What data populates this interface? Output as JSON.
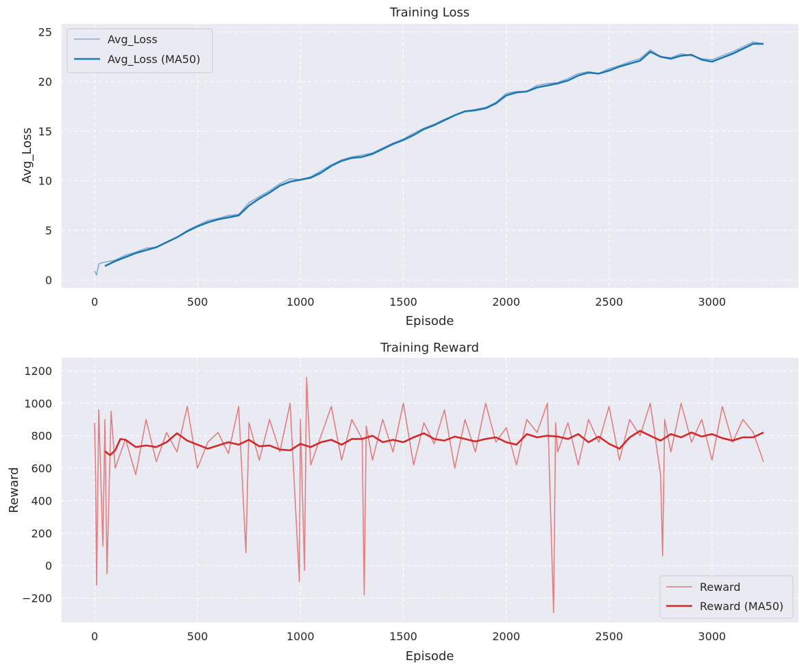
{
  "chart_data": [
    {
      "type": "line",
      "title": "Training Loss",
      "xlabel": "Episode",
      "ylabel": "Avg_Loss",
      "xlim": [
        -160,
        3420
      ],
      "ylim": [
        -0.8,
        25.8
      ],
      "xticks": [
        0,
        500,
        1000,
        1500,
        2000,
        2500,
        3000
      ],
      "yticks": [
        0,
        5,
        10,
        15,
        20,
        25
      ],
      "grid": true,
      "legend_position": "top-left",
      "series": [
        {
          "name": "Avg_Loss",
          "color": "#7fadd3",
          "x": [
            0,
            10,
            20,
            30,
            50,
            100,
            150,
            200,
            250,
            300,
            350,
            400,
            450,
            500,
            550,
            600,
            650,
            700,
            750,
            800,
            850,
            900,
            950,
            1000,
            1050,
            1100,
            1150,
            1200,
            1250,
            1300,
            1350,
            1400,
            1450,
            1500,
            1550,
            1600,
            1650,
            1700,
            1750,
            1800,
            1850,
            1900,
            1950,
            2000,
            2050,
            2100,
            2150,
            2200,
            2250,
            2300,
            2350,
            2400,
            2450,
            2500,
            2550,
            2600,
            2650,
            2700,
            2750,
            2800,
            2850,
            2900,
            2950,
            3000,
            3050,
            3100,
            3150,
            3200,
            3250
          ],
          "values": [
            0.9,
            0.5,
            1.6,
            1.7,
            1.8,
            2.0,
            2.5,
            2.8,
            3.2,
            3.3,
            3.8,
            4.3,
            5.0,
            5.5,
            6.0,
            6.2,
            6.5,
            6.6,
            7.8,
            8.4,
            9.0,
            9.7,
            10.2,
            10.1,
            10.4,
            11.0,
            11.6,
            12.1,
            12.4,
            12.6,
            12.8,
            13.3,
            13.8,
            14.2,
            14.8,
            15.3,
            15.7,
            16.2,
            16.6,
            17.0,
            17.2,
            17.4,
            17.9,
            18.8,
            19.0,
            19.0,
            19.6,
            19.8,
            19.9,
            20.3,
            20.8,
            21.0,
            20.8,
            21.3,
            21.6,
            22.0,
            22.3,
            23.2,
            22.5,
            22.4,
            22.8,
            22.6,
            22.3,
            22.2,
            22.6,
            23.0,
            23.5,
            24.0,
            23.8
          ]
        },
        {
          "name": "Avg_Loss (MA50)",
          "color": "#1f77b4",
          "x": [
            50,
            100,
            150,
            200,
            250,
            300,
            350,
            400,
            450,
            500,
            550,
            600,
            650,
            700,
            750,
            800,
            850,
            900,
            950,
            1000,
            1050,
            1100,
            1150,
            1200,
            1250,
            1300,
            1350,
            1400,
            1450,
            1500,
            1550,
            1600,
            1650,
            1700,
            1750,
            1800,
            1850,
            1900,
            1950,
            2000,
            2050,
            2100,
            2150,
            2200,
            2250,
            2300,
            2350,
            2400,
            2450,
            2500,
            2550,
            2600,
            2650,
            2700,
            2750,
            2800,
            2850,
            2900,
            2950,
            3000,
            3050,
            3100,
            3150,
            3200,
            3250
          ],
          "values": [
            1.4,
            1.9,
            2.3,
            2.7,
            3.0,
            3.3,
            3.8,
            4.3,
            4.9,
            5.4,
            5.8,
            6.1,
            6.3,
            6.5,
            7.5,
            8.2,
            8.8,
            9.5,
            9.9,
            10.1,
            10.3,
            10.8,
            11.5,
            12.0,
            12.3,
            12.4,
            12.7,
            13.2,
            13.7,
            14.1,
            14.6,
            15.2,
            15.6,
            16.1,
            16.6,
            17.0,
            17.1,
            17.3,
            17.8,
            18.6,
            18.9,
            19.0,
            19.4,
            19.6,
            19.8,
            20.1,
            20.6,
            20.9,
            20.8,
            21.1,
            21.5,
            21.8,
            22.1,
            23.0,
            22.5,
            22.3,
            22.6,
            22.7,
            22.2,
            22.0,
            22.4,
            22.8,
            23.3,
            23.8,
            23.8
          ]
        }
      ]
    },
    {
      "type": "line",
      "title": "Training Reward",
      "xlabel": "Episode",
      "ylabel": "Reward",
      "xlim": [
        -160,
        3420
      ],
      "ylim": [
        -350,
        1280
      ],
      "xticks": [
        0,
        500,
        1000,
        1500,
        2000,
        2500,
        3000
      ],
      "yticks": [
        -200,
        0,
        200,
        400,
        600,
        800,
        1000,
        1200
      ],
      "ytick_labels": [
        "−200",
        "0",
        "200",
        "400",
        "600",
        "800",
        "1000",
        "1200"
      ],
      "grid": true,
      "legend_position": "bottom-right",
      "series": [
        {
          "name": "Reward",
          "color": "#e07e80",
          "x": [
            0,
            5,
            10,
            20,
            40,
            50,
            60,
            80,
            100,
            150,
            200,
            250,
            300,
            350,
            400,
            450,
            500,
            550,
            600,
            650,
            700,
            735,
            750,
            800,
            850,
            900,
            950,
            995,
            1000,
            1020,
            1030,
            1050,
            1100,
            1150,
            1200,
            1250,
            1300,
            1310,
            1320,
            1350,
            1400,
            1450,
            1500,
            1550,
            1600,
            1650,
            1700,
            1750,
            1800,
            1850,
            1900,
            1950,
            2000,
            2050,
            2100,
            2150,
            2200,
            2230,
            2240,
            2250,
            2300,
            2350,
            2400,
            2450,
            2500,
            2550,
            2600,
            2650,
            2700,
            2750,
            2760,
            2770,
            2800,
            2850,
            2900,
            2950,
            3000,
            3050,
            3100,
            3150,
            3200,
            3250
          ],
          "values": [
            880,
            540,
            -120,
            960,
            120,
            900,
            -50,
            950,
            600,
            780,
            560,
            900,
            640,
            820,
            700,
            980,
            600,
            760,
            820,
            690,
            980,
            80,
            880,
            650,
            900,
            700,
            1000,
            -100,
            900,
            -30,
            1160,
            620,
            800,
            980,
            650,
            900,
            780,
            -180,
            860,
            650,
            900,
            700,
            1000,
            620,
            880,
            750,
            960,
            600,
            900,
            700,
            1000,
            760,
            850,
            620,
            900,
            820,
            1000,
            -290,
            880,
            700,
            880,
            620,
            900,
            760,
            980,
            650,
            900,
            800,
            1000,
            560,
            60,
            900,
            700,
            1000,
            760,
            900,
            650,
            980,
            760,
            900,
            820,
            640
          ]
        },
        {
          "name": "Reward (MA50)",
          "color": "#d62728",
          "x": [
            50,
            75,
            100,
            125,
            150,
            200,
            250,
            300,
            350,
            400,
            450,
            500,
            550,
            600,
            650,
            700,
            750,
            800,
            850,
            900,
            950,
            1000,
            1050,
            1100,
            1150,
            1200,
            1250,
            1300,
            1350,
            1400,
            1450,
            1500,
            1550,
            1600,
            1650,
            1700,
            1750,
            1800,
            1850,
            1900,
            1950,
            2000,
            2050,
            2100,
            2150,
            2200,
            2250,
            2300,
            2350,
            2400,
            2450,
            2500,
            2550,
            2600,
            2650,
            2700,
            2750,
            2800,
            2850,
            2900,
            2950,
            3000,
            3050,
            3100,
            3150,
            3200,
            3250
          ],
          "values": [
            705,
            680,
            710,
            780,
            775,
            730,
            740,
            730,
            760,
            815,
            770,
            745,
            720,
            740,
            760,
            745,
            775,
            735,
            740,
            715,
            710,
            750,
            730,
            760,
            775,
            745,
            780,
            780,
            800,
            760,
            775,
            760,
            790,
            815,
            780,
            770,
            795,
            780,
            765,
            780,
            790,
            760,
            745,
            810,
            790,
            800,
            795,
            780,
            810,
            760,
            795,
            750,
            720,
            790,
            830,
            800,
            770,
            810,
            790,
            820,
            795,
            810,
            785,
            770,
            790,
            790,
            820
          ]
        }
      ]
    }
  ]
}
